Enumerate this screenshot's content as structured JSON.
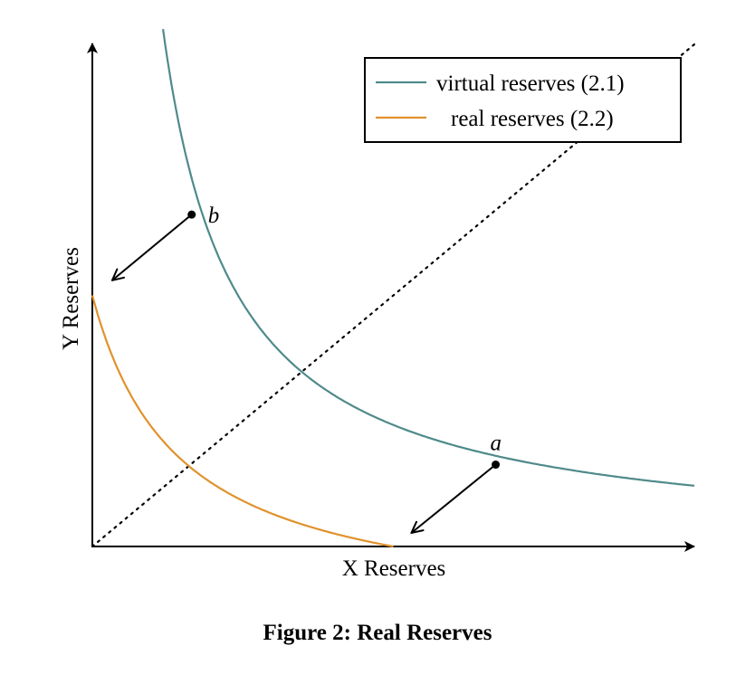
{
  "chart_data": {
    "type": "line",
    "x_label": "X Reserves",
    "y_label": "Y Reserves",
    "xlim": [
      0,
      10
    ],
    "ylim": [
      0,
      10
    ],
    "grid": false,
    "legend_placement": "top-right",
    "series": [
      {
        "name": "virtual reserves (2.1)",
        "color": "#4f8a8b",
        "kind": "hyperbola",
        "k": 12.1,
        "x_range": [
          1.1,
          10
        ],
        "description_key": "xy=k"
      },
      {
        "name": "real reserves (2.2)",
        "color": "#e0922c",
        "kind": "shifted-hyperbola",
        "k": 12.1,
        "shift": 1.43,
        "x_range": [
          0,
          5.0
        ]
      }
    ],
    "reference_line": {
      "style": "dotted",
      "from": [
        0,
        0
      ],
      "to": [
        10,
        10
      ]
    },
    "points": [
      {
        "label": "b",
        "x": 1.65,
        "y": 6.61,
        "arrow_to": [
          0.33,
          5.3
        ]
      },
      {
        "label": "a",
        "x": 6.7,
        "y": 1.63,
        "arrow_to": [
          5.3,
          0.27
        ]
      }
    ]
  },
  "caption": "Figure 2: Real Reserves"
}
